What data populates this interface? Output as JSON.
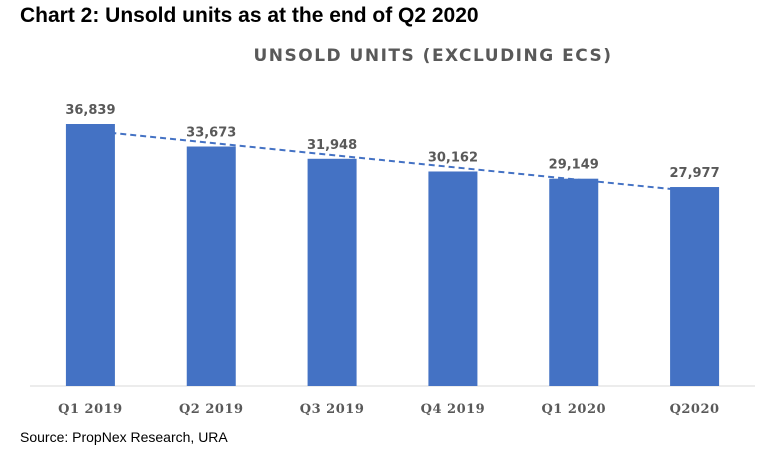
{
  "figure_title": "Chart 2: Unsold units as at the end of Q2 2020",
  "source": "Source: PropNex Research, URA",
  "colors": {
    "bar": "#4472c4",
    "trendline": "#4472c4",
    "label": "#595959",
    "axis": "#d9d9d9"
  },
  "chart_data": {
    "type": "bar",
    "title": "UNSOLD UNITS (EXCLUDING ECS)",
    "categories": [
      "Q1 2019",
      "Q2 2019",
      "Q3 2019",
      "Q4 2019",
      "Q1 2020",
      "Q2020"
    ],
    "values": [
      36839,
      33673,
      31948,
      30162,
      29149,
      27977
    ],
    "value_labels": [
      "36,839",
      "33,673",
      "31,948",
      "30,162",
      "29,149",
      "27,977"
    ],
    "ylim": [
      0,
      36839
    ],
    "trendline": "linear",
    "grid": false,
    "legend": "none"
  }
}
